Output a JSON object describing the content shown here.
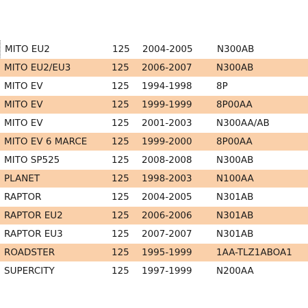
{
  "table": {
    "rows": [
      {
        "model": "MITO EU2",
        "cc": "125",
        "years": "2004-2005",
        "code": "N300AB",
        "highlight": false
      },
      {
        "model": "MITO EU2/EU3",
        "cc": "125",
        "years": "2006-2007",
        "code": "N300AB",
        "highlight": true
      },
      {
        "model": "MITO EV",
        "cc": "125",
        "years": "1994-1998",
        "code": "8P",
        "highlight": false
      },
      {
        "model": "MITO EV",
        "cc": "125",
        "years": "1999-1999",
        "code": "8P00AA",
        "highlight": true
      },
      {
        "model": "MITO EV",
        "cc": "125",
        "years": "2001-2003",
        "code": "N300AA/AB",
        "highlight": false
      },
      {
        "model": "MITO EV 6 MARCE",
        "cc": "125",
        "years": "1999-2000",
        "code": "8P00AA",
        "highlight": true
      },
      {
        "model": "MITO SP525",
        "cc": "125",
        "years": "2008-2008",
        "code": "N300AB",
        "highlight": false
      },
      {
        "model": "PLANET",
        "cc": "125",
        "years": "1998-2003",
        "code": "N100AA",
        "highlight": true
      },
      {
        "model": "RAPTOR",
        "cc": "125",
        "years": "2004-2005",
        "code": "N301AB",
        "highlight": false
      },
      {
        "model": "RAPTOR EU2",
        "cc": "125",
        "years": "2006-2006",
        "code": "N301AB",
        "highlight": true
      },
      {
        "model": "RAPTOR EU3",
        "cc": "125",
        "years": "2007-2007",
        "code": "N301AB",
        "highlight": false
      },
      {
        "model": "ROADSTER",
        "cc": "125",
        "years": "1995-1999",
        "code": "1AA-TLZ1ABOA1",
        "highlight": true
      },
      {
        "model": "SUPERCITY",
        "cc": "125",
        "years": "1997-1999",
        "code": "N200AA",
        "highlight": false
      }
    ]
  },
  "colors": {
    "highlight_row": "#fad0aa",
    "plain_row": "#ffffff",
    "text": "#1b1b1b"
  }
}
